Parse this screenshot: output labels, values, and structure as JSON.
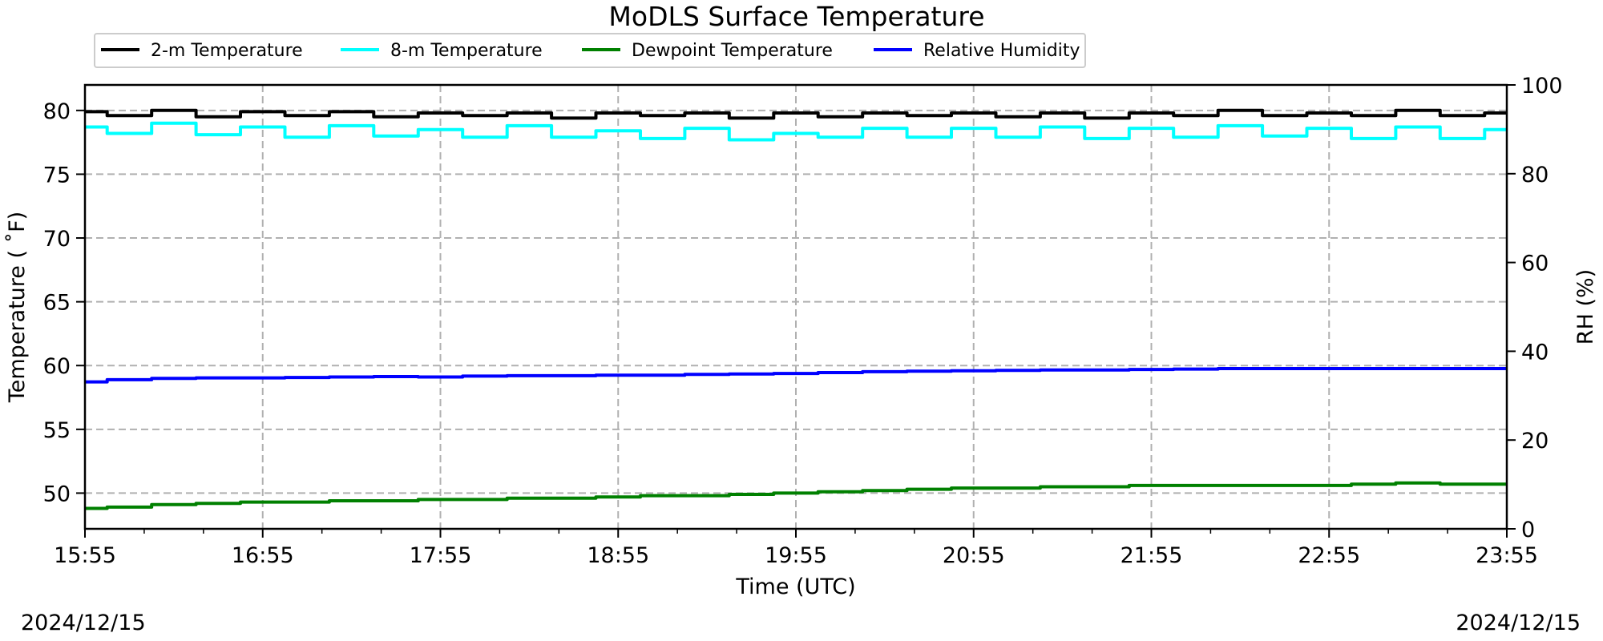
{
  "chart_data": {
    "type": "line",
    "title": "MoDLS Surface Temperature",
    "xlabel": "Time (UTC)",
    "ylabel": "Temperature ($^\\circ$F)",
    "ylabel_display": "Temperature ( ˚F)",
    "y2label": "RH (%)",
    "date_start": "2024/12/15",
    "date_end": "2024/12/15",
    "x_ticks": [
      "15:55",
      "16:55",
      "17:55",
      "18:55",
      "19:55",
      "20:55",
      "21:55",
      "22:55",
      "23:55"
    ],
    "xlim": [
      "15:55",
      "23:55"
    ],
    "ylim": [
      47.2,
      82.0
    ],
    "y_ticks": [
      50,
      55,
      60,
      65,
      70,
      75,
      80
    ],
    "y2lim": [
      0,
      100
    ],
    "y2_ticks": [
      0,
      20,
      40,
      60,
      80,
      100
    ],
    "grid": true,
    "legend_placement": "top-left, above plot",
    "x": [
      "15:55",
      "16:10",
      "16:25",
      "16:40",
      "16:55",
      "17:10",
      "17:25",
      "17:40",
      "17:55",
      "18:10",
      "18:25",
      "18:40",
      "18:55",
      "19:10",
      "19:25",
      "19:40",
      "19:55",
      "20:10",
      "20:25",
      "20:40",
      "20:55",
      "21:10",
      "21:25",
      "21:40",
      "21:55",
      "22:10",
      "22:25",
      "22:40",
      "22:55",
      "23:10",
      "23:25",
      "23:40",
      "23:55"
    ],
    "series": [
      {
        "name": "2-m Temperature",
        "color": "#000000",
        "axis": "left",
        "values": [
          79.9,
          79.6,
          80.0,
          79.5,
          79.9,
          79.6,
          79.9,
          79.5,
          79.8,
          79.6,
          79.8,
          79.4,
          79.8,
          79.6,
          79.8,
          79.4,
          79.8,
          79.5,
          79.8,
          79.6,
          79.8,
          79.5,
          79.8,
          79.4,
          79.8,
          79.6,
          80.0,
          79.6,
          79.8,
          79.6,
          80.0,
          79.6,
          79.8
        ]
      },
      {
        "name": "8-m Temperature",
        "color": "#00ffff",
        "axis": "left",
        "values": [
          78.7,
          78.2,
          79.0,
          78.1,
          78.7,
          77.9,
          78.8,
          78.0,
          78.5,
          77.9,
          78.8,
          77.9,
          78.4,
          77.8,
          78.6,
          77.7,
          78.2,
          77.9,
          78.6,
          77.9,
          78.6,
          77.9,
          78.7,
          77.8,
          78.6,
          77.9,
          78.8,
          78.0,
          78.6,
          77.8,
          78.7,
          77.8,
          78.5
        ]
      },
      {
        "name": "Dewpoint Temperature",
        "color": "#008000",
        "axis": "left",
        "values": [
          48.8,
          48.9,
          49.1,
          49.2,
          49.3,
          49.3,
          49.4,
          49.4,
          49.5,
          49.5,
          49.6,
          49.6,
          49.7,
          49.8,
          49.8,
          49.9,
          50.0,
          50.1,
          50.2,
          50.3,
          50.4,
          50.4,
          50.5,
          50.5,
          50.6,
          50.6,
          50.6,
          50.6,
          50.6,
          50.7,
          50.8,
          50.7,
          50.7
        ]
      },
      {
        "name": "Relative Humidity",
        "color": "#0000ff",
        "axis": "right",
        "values": [
          33.1,
          33.6,
          33.9,
          34.0,
          34.0,
          34.1,
          34.2,
          34.3,
          34.2,
          34.4,
          34.5,
          34.5,
          34.6,
          34.6,
          34.8,
          34.9,
          35.0,
          35.2,
          35.4,
          35.5,
          35.6,
          35.7,
          35.8,
          35.8,
          35.9,
          36.0,
          36.1,
          36.1,
          36.1,
          36.1,
          36.1,
          36.1,
          36.1
        ]
      }
    ]
  }
}
